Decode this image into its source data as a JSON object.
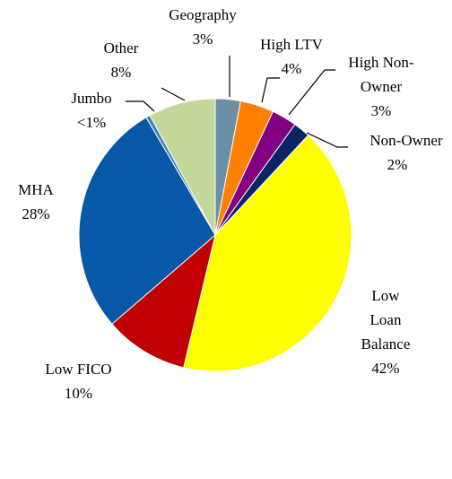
{
  "chart_data": {
    "type": "pie",
    "categories": [
      "Geography",
      "High LTV",
      "High Non-Owner",
      "Non-Owner",
      "Low Loan Balance",
      "Low FICO",
      "MHA",
      "Jumbo",
      "Other"
    ],
    "values": [
      3,
      4,
      3,
      2,
      42,
      10,
      28,
      0.5,
      8
    ],
    "value_labels": [
      "3%",
      "4%",
      "3%",
      "2%",
      "42%",
      "10%",
      "28%",
      "<1%",
      "8%"
    ],
    "colors": [
      "#6b8fa3",
      "#ff7f00",
      "#800080",
      "#0a2466",
      "#ffff00",
      "#c00000",
      "#0758a6",
      "#4a7ebb",
      "#c4d79b"
    ]
  }
}
